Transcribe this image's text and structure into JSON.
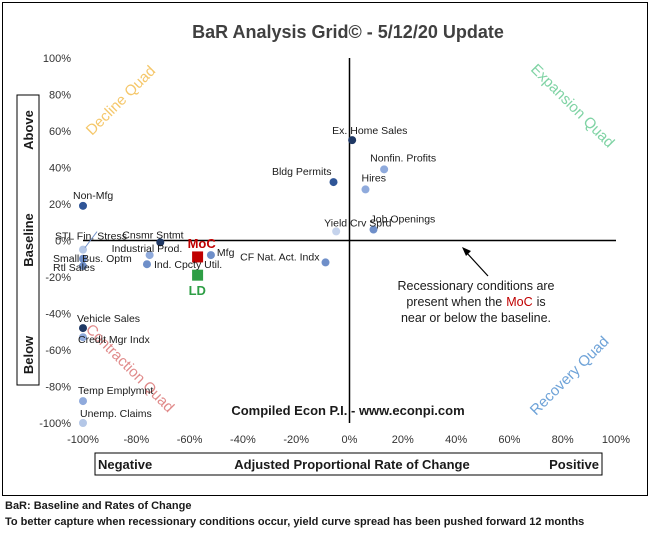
{
  "chart_data": {
    "type": "scatter",
    "title": "BaR Analysis Grid© - 5/12/20 Update",
    "xlabel": "Adjusted Proportional Rate of Change",
    "xlabel_left": "Negative",
    "xlabel_right": "Positive",
    "ylabel_top": "Above",
    "ylabel_mid": "Baseline",
    "ylabel_bottom": "Below",
    "xlim": [
      -1.0,
      1.0
    ],
    "ylim": [
      -1.0,
      1.0
    ],
    "xticks": [
      -1.0,
      -0.8,
      -0.6,
      -0.4,
      -0.2,
      0.0,
      0.2,
      0.4,
      0.6,
      0.8,
      1.0
    ],
    "yticks": [
      -1.0,
      -0.8,
      -0.6,
      -0.4,
      -0.2,
      0.0,
      0.2,
      0.4,
      0.6,
      0.8,
      1.0
    ],
    "xtick_labels": [
      "-100%",
      "-80%",
      "-60%",
      "-40%",
      "-20%",
      "0%",
      "20%",
      "40%",
      "60%",
      "80%",
      "100%"
    ],
    "ytick_labels": [
      "-100%",
      "-80%",
      "-60%",
      "-40%",
      "-20%",
      "0%",
      "20%",
      "40%",
      "60%",
      "80%",
      "100%"
    ],
    "grid": false,
    "quadrants": {
      "decline": {
        "label": "Decline Quad",
        "color": "#f5c76a"
      },
      "expansion": {
        "label": "Expansion Quad",
        "color": "#7fd3a4"
      },
      "contraction": {
        "label": "Contraction Quad",
        "color": "#e08a8a"
      },
      "recovery": {
        "label": "Recovery Quad",
        "color": "#6fa3d8"
      }
    },
    "points": [
      {
        "label": "Ex. Home Sales",
        "x": 0.01,
        "y": 0.55,
        "color": "#1f3864"
      },
      {
        "label": "Nonfin. Profits",
        "x": 0.13,
        "y": 0.39,
        "color": "#8faadc"
      },
      {
        "label": "Bldg Permits",
        "x": -0.06,
        "y": 0.32,
        "color": "#2f5597"
      },
      {
        "label": "Hires",
        "x": 0.06,
        "y": 0.28,
        "color": "#8faadc"
      },
      {
        "label": "Job Openings",
        "x": 0.09,
        "y": 0.06,
        "color": "#6f8fc9"
      },
      {
        "label": "Yield Crv Sprd",
        "x": -0.05,
        "y": 0.05,
        "color": "#c5d3ec"
      },
      {
        "label": "Non-Mfg",
        "x": -1.0,
        "y": 0.19,
        "color": "#2f5597"
      },
      {
        "label": "STL Fin. Stress",
        "x": -1.0,
        "y": -0.05,
        "color": "#b4c7e7"
      },
      {
        "label": "Cnsmr Sntmt",
        "x": -0.71,
        "y": -0.01,
        "color": "#1f3864"
      },
      {
        "label": "Industrial Prod.",
        "x": -0.75,
        "y": -0.08,
        "color": "#8faadc"
      },
      {
        "label": "Small Bus. Optm",
        "x": -1.0,
        "y": -0.1,
        "color": "#6f8fc9"
      },
      {
        "label": "Rtl Sales",
        "x": -1.0,
        "y": -0.14,
        "color": "#6f8fc9"
      },
      {
        "label": "Ind. Cpcty Util.",
        "x": -0.76,
        "y": -0.13,
        "color": "#6f8fc9"
      },
      {
        "label": "Mfg",
        "x": -0.52,
        "y": -0.08,
        "color": "#6f8fc9"
      },
      {
        "label": "CF Nat. Act. Indx",
        "x": -0.09,
        "y": -0.12,
        "color": "#6f8fc9"
      },
      {
        "label": "Vehicle Sales",
        "x": -1.0,
        "y": -0.48,
        "color": "#1f3864"
      },
      {
        "label": "Credit Mgr Indx",
        "x": -1.0,
        "y": -0.53,
        "color": "#8faadc"
      },
      {
        "label": "Temp Emplymnt",
        "x": -1.0,
        "y": -0.88,
        "color": "#8faadc"
      },
      {
        "label": "Unemp. Claims",
        "x": -1.0,
        "y": -1.0,
        "color": "#b4c7e7"
      }
    ],
    "highlights": [
      {
        "label": "MoC",
        "x": -0.57,
        "y": -0.09,
        "color": "#c00000"
      },
      {
        "label": "LD",
        "x": -0.57,
        "y": -0.19,
        "color": "#2e9e45"
      }
    ],
    "annotations": {
      "note_lines": [
        "Recessionary conditions are",
        "present when the",
        "MoC",
        "is",
        "near or below the baseline."
      ],
      "compiled": "Compiled Econ P.I. - www.econpi.com"
    }
  },
  "footer": {
    "line1": "BaR: Baseline and Rates of Change",
    "line2": "To better capture when recessionary conditions occur, yield curve spread has been pushed forward 12 months"
  }
}
